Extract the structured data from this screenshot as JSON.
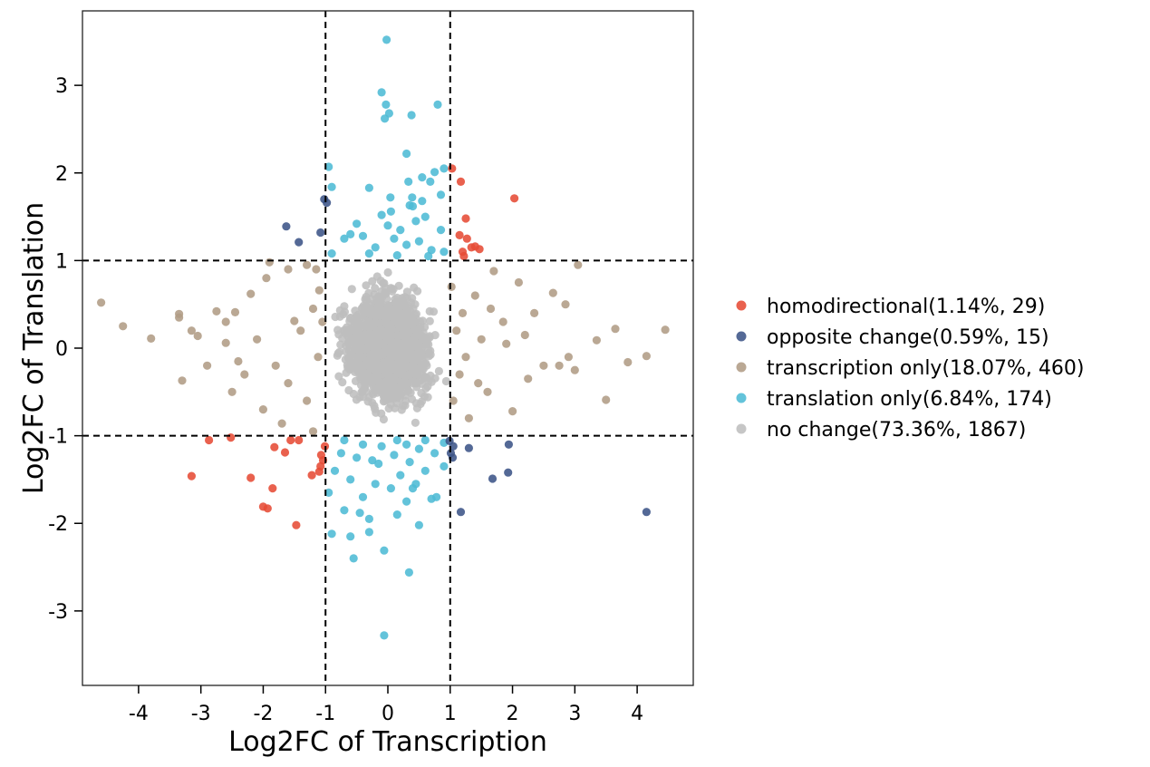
{
  "chart_data": {
    "type": "scatter",
    "title": "",
    "xlabel": "Log2FC of Transcription",
    "ylabel": "Log2FC of Translation",
    "xlim": [
      -4.9,
      4.9
    ],
    "ylim": [
      -3.85,
      3.85
    ],
    "xticks": [
      -4,
      -3,
      -2,
      -1,
      0,
      1,
      2,
      3,
      4
    ],
    "yticks": [
      -3,
      -2,
      -1,
      0,
      1,
      2,
      3
    ],
    "xtick_labels": [
      "-4",
      "-3",
      "-2",
      "-1",
      "0",
      "1",
      "2",
      "3",
      "4"
    ],
    "ytick_labels": [
      "-3",
      "-2",
      "-1",
      "0",
      "1",
      "2",
      "3"
    ],
    "thresholds": {
      "x": [
        -1,
        1
      ],
      "y": [
        -1,
        1
      ]
    },
    "grid": false,
    "legend_position": "right",
    "series": [
      {
        "name": "homodirectional(1.14%, 29)",
        "color": "#e64b35",
        "points": [
          [
            1.03,
            2.05
          ],
          [
            1.17,
            1.9
          ],
          [
            2.03,
            1.71
          ],
          [
            1.25,
            1.48
          ],
          [
            1.15,
            1.29
          ],
          [
            1.27,
            1.25
          ],
          [
            1.4,
            1.16
          ],
          [
            1.34,
            1.15
          ],
          [
            1.47,
            1.13
          ],
          [
            1.2,
            1.1
          ],
          [
            1.22,
            1.05
          ],
          [
            -2.87,
            -1.05
          ],
          [
            -1.56,
            -1.05
          ],
          [
            -1.43,
            -1.05
          ],
          [
            -1.82,
            -1.13
          ],
          [
            -1.01,
            -1.12
          ],
          [
            -1.65,
            -1.19
          ],
          [
            -1.07,
            -1.22
          ],
          [
            -1.04,
            -1.28
          ],
          [
            -1.1,
            -1.41
          ],
          [
            -1.22,
            -1.45
          ],
          [
            -3.15,
            -1.46
          ],
          [
            -2.2,
            -1.48
          ],
          [
            -1.85,
            -1.6
          ],
          [
            -2.0,
            -1.81
          ],
          [
            -1.93,
            -1.83
          ],
          [
            -1.47,
            -2.02
          ],
          [
            -1.08,
            -1.35
          ],
          [
            -2.52,
            -1.02
          ]
        ]
      },
      {
        "name": "opposite change(0.59%, 15)",
        "color": "#3c5488",
        "points": [
          [
            -1.02,
            1.7
          ],
          [
            -0.98,
            1.66
          ],
          [
            -1.63,
            1.39
          ],
          [
            -1.08,
            1.32
          ],
          [
            -1.43,
            1.21
          ],
          [
            0.99,
            -1.06
          ],
          [
            1.01,
            -1.2
          ],
          [
            1.04,
            -1.25
          ],
          [
            1.3,
            -1.14
          ],
          [
            1.94,
            -1.1
          ],
          [
            1.68,
            -1.49
          ],
          [
            1.93,
            -1.42
          ],
          [
            1.17,
            -1.87
          ],
          [
            4.15,
            -1.87
          ],
          [
            1.05,
            -1.12
          ]
        ]
      },
      {
        "name": "transcription only(18.07%, 460)",
        "color": "#b09c85",
        "points": [
          [
            -4.6,
            0.52
          ],
          [
            -4.25,
            0.25
          ],
          [
            -3.8,
            0.11
          ],
          [
            -3.35,
            0.39
          ],
          [
            -3.35,
            0.35
          ],
          [
            -3.15,
            0.2
          ],
          [
            -3.05,
            0.14
          ],
          [
            -3.3,
            -0.37
          ],
          [
            -2.75,
            0.42
          ],
          [
            -2.6,
            0.06
          ],
          [
            -2.5,
            -0.5
          ],
          [
            -2.45,
            0.41
          ],
          [
            -2.3,
            -0.3
          ],
          [
            -2.2,
            0.62
          ],
          [
            -2.0,
            -0.7
          ],
          [
            -1.95,
            0.8
          ],
          [
            -1.9,
            0.98
          ],
          [
            -1.7,
            -0.86
          ],
          [
            -1.6,
            0.9
          ],
          [
            -1.5,
            0.31
          ],
          [
            -1.3,
            0.95
          ],
          [
            -1.2,
            -0.95
          ],
          [
            -1.15,
            0.9
          ],
          [
            -1.1,
            0.66
          ],
          [
            -2.1,
            0.1
          ],
          [
            -1.8,
            -0.2
          ],
          [
            -1.6,
            -0.4
          ],
          [
            -1.4,
            0.2
          ],
          [
            -1.3,
            -0.6
          ],
          [
            -1.2,
            0.45
          ],
          [
            -1.12,
            -0.1
          ],
          [
            -1.05,
            0.3
          ],
          [
            -2.9,
            -0.2
          ],
          [
            -2.6,
            0.3
          ],
          [
            -2.4,
            -0.15
          ],
          [
            4.45,
            0.21
          ],
          [
            4.15,
            -0.09
          ],
          [
            3.85,
            -0.16
          ],
          [
            3.65,
            0.22
          ],
          [
            3.5,
            -0.59
          ],
          [
            3.35,
            0.09
          ],
          [
            3.05,
            0.95
          ],
          [
            3.0,
            -0.25
          ],
          [
            2.9,
            -0.1
          ],
          [
            2.85,
            0.5
          ],
          [
            2.65,
            0.63
          ],
          [
            2.5,
            -0.2
          ],
          [
            2.35,
            0.4
          ],
          [
            2.25,
            -0.35
          ],
          [
            2.1,
            0.75
          ],
          [
            2.0,
            -0.72
          ],
          [
            1.85,
            0.3
          ],
          [
            1.7,
            0.88
          ],
          [
            1.6,
            -0.5
          ],
          [
            1.5,
            0.1
          ],
          [
            1.4,
            0.6
          ],
          [
            1.3,
            -0.8
          ],
          [
            1.2,
            0.4
          ],
          [
            1.15,
            -0.3
          ],
          [
            1.1,
            0.2
          ],
          [
            1.05,
            -0.6
          ],
          [
            1.02,
            0.7
          ],
          [
            1.25,
            -0.1
          ],
          [
            1.45,
            -0.4
          ],
          [
            1.65,
            0.45
          ],
          [
            1.9,
            0.05
          ],
          [
            2.2,
            0.15
          ],
          [
            2.75,
            -0.2
          ]
        ]
      },
      {
        "name": "translation only(6.84%, 174)",
        "color": "#4dbbd5",
        "points": [
          [
            -0.02,
            3.52
          ],
          [
            -0.1,
            2.92
          ],
          [
            -0.03,
            2.78
          ],
          [
            0.8,
            2.78
          ],
          [
            -0.05,
            2.62
          ],
          [
            0.02,
            2.68
          ],
          [
            0.38,
            2.66
          ],
          [
            0.3,
            2.22
          ],
          [
            -0.95,
            2.07
          ],
          [
            0.75,
            2.01
          ],
          [
            0.9,
            2.05
          ],
          [
            0.55,
            1.95
          ],
          [
            0.68,
            1.9
          ],
          [
            0.33,
            1.9
          ],
          [
            -0.9,
            1.84
          ],
          [
            -0.3,
            1.83
          ],
          [
            0.04,
            1.72
          ],
          [
            0.39,
            1.72
          ],
          [
            0.55,
            1.68
          ],
          [
            0.85,
            1.75
          ],
          [
            0.4,
            1.62
          ],
          [
            0.35,
            1.63
          ],
          [
            0.05,
            1.56
          ],
          [
            0.6,
            1.5
          ],
          [
            -0.5,
            1.42
          ],
          [
            0.0,
            1.4
          ],
          [
            0.2,
            1.35
          ],
          [
            -0.6,
            1.3
          ],
          [
            -0.4,
            1.28
          ],
          [
            0.1,
            1.25
          ],
          [
            0.5,
            1.22
          ],
          [
            0.3,
            1.18
          ],
          [
            -0.7,
            1.25
          ],
          [
            -0.2,
            1.15
          ],
          [
            0.7,
            1.12
          ],
          [
            0.9,
            1.1
          ],
          [
            -0.9,
            1.08
          ],
          [
            0.15,
            1.06
          ],
          [
            -0.3,
            1.08
          ],
          [
            0.65,
            1.05
          ],
          [
            0.85,
            1.35
          ],
          [
            0.45,
            1.45
          ],
          [
            -0.1,
            1.52
          ],
          [
            -0.06,
            -3.28
          ],
          [
            0.34,
            -2.56
          ],
          [
            -0.06,
            -2.31
          ],
          [
            -0.55,
            -2.4
          ],
          [
            -0.3,
            -2.1
          ],
          [
            -0.6,
            -2.15
          ],
          [
            -0.9,
            -2.12
          ],
          [
            0.15,
            -1.9
          ],
          [
            0.5,
            -2.02
          ],
          [
            -0.45,
            -1.88
          ],
          [
            -0.7,
            -1.85
          ],
          [
            -0.95,
            -1.65
          ],
          [
            -0.4,
            -1.7
          ],
          [
            0.3,
            -1.75
          ],
          [
            0.7,
            -1.72
          ],
          [
            0.78,
            -1.7
          ],
          [
            0.05,
            -1.6
          ],
          [
            -0.2,
            -1.55
          ],
          [
            0.45,
            -1.55
          ],
          [
            -0.6,
            -1.5
          ],
          [
            0.2,
            -1.45
          ],
          [
            -0.85,
            -1.4
          ],
          [
            0.6,
            -1.4
          ],
          [
            0.9,
            -1.35
          ],
          [
            0.35,
            -1.3
          ],
          [
            -0.25,
            -1.28
          ],
          [
            -0.5,
            -1.25
          ],
          [
            0.1,
            -1.22
          ],
          [
            0.75,
            -1.2
          ],
          [
            -0.75,
            -1.2
          ],
          [
            0.5,
            -1.15
          ],
          [
            -0.1,
            -1.12
          ],
          [
            0.3,
            -1.1
          ],
          [
            -0.4,
            -1.1
          ],
          [
            0.9,
            -1.08
          ],
          [
            0.6,
            -1.05
          ],
          [
            -0.7,
            -1.05
          ],
          [
            0.15,
            -1.05
          ],
          [
            -0.15,
            -1.32
          ],
          [
            0.4,
            -1.6
          ],
          [
            -0.3,
            -1.95
          ]
        ]
      },
      {
        "name": "no change(73.36%, 1867)",
        "color": "#bebebe",
        "generated": true,
        "points": []
      }
    ]
  }
}
